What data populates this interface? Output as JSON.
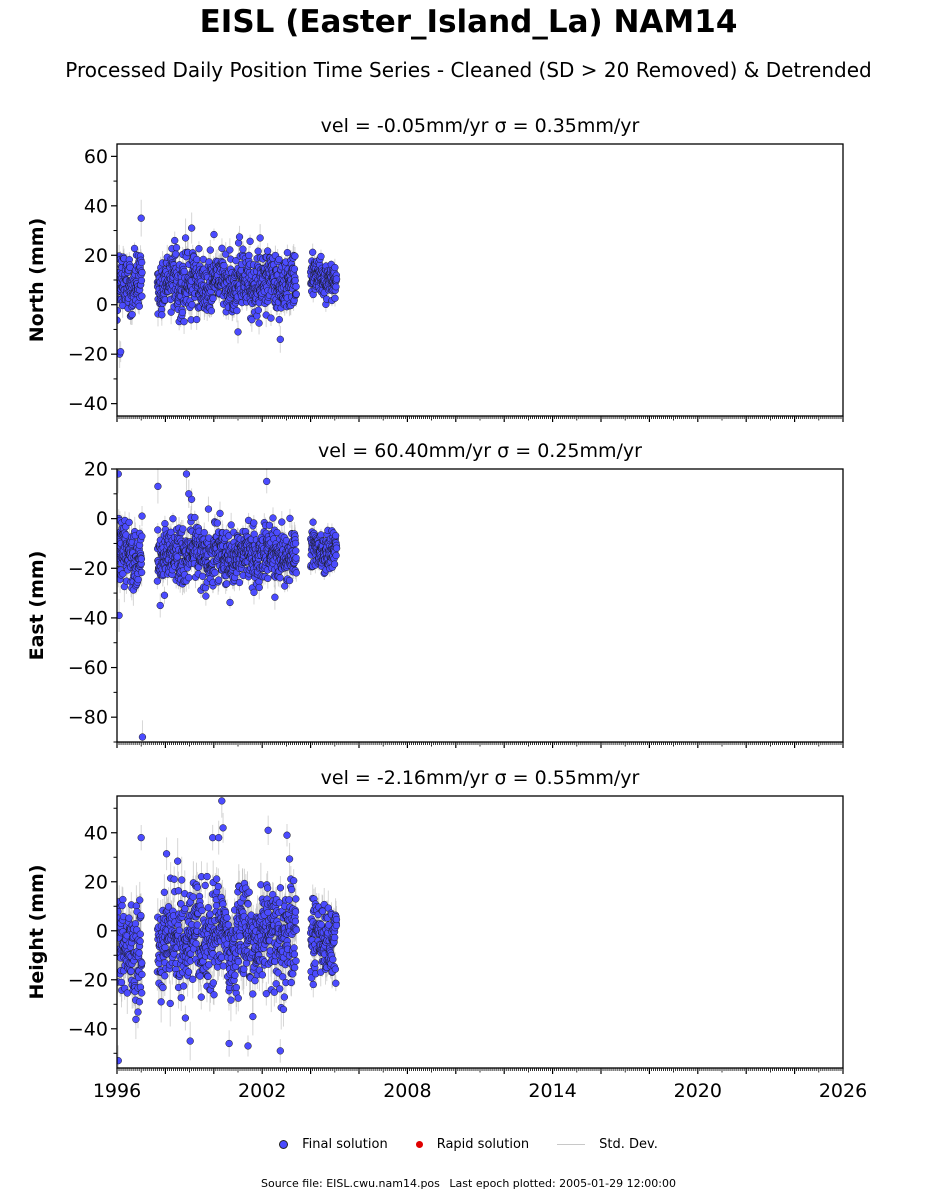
{
  "header": {
    "title": "EISL (Easter_Island_La) NAM14",
    "subtitle": "Processed Daily Position Time Series - Cleaned (SD > 20 Removed) & Detrended"
  },
  "legend": {
    "final_label": "Final solution",
    "rapid_label": "Rapid solution",
    "std_label": "Std. Dev."
  },
  "footer": {
    "source": "Source file: EISL.cwu.nam14.pos",
    "last_epoch": "Last epoch plotted: 2005-01-29 12:00:00"
  },
  "colors": {
    "final": "#4b4bff",
    "rapid": "#e00000",
    "std": "#b4b4b4"
  },
  "chart_data": [
    {
      "type": "scatter",
      "title": "vel = -0.05mm/yr   σ = 0.35mm/yr",
      "ylabel": "North (mm)",
      "xlim": [
        "1996-01-01",
        "2026-01-01"
      ],
      "ylim": [
        -45,
        65
      ],
      "yticks": [
        -40,
        -20,
        0,
        20,
        40,
        60
      ],
      "segments": [
        {
          "start": "1996-01-01",
          "end": "1997-01-15",
          "mean": 9,
          "sd": 6.5
        },
        {
          "start": "1997-09-01",
          "end": "2003-06-01",
          "mean": 9,
          "sd": 6.5
        },
        {
          "start": "2004-01-01",
          "end": "2005-01-29",
          "mean": 11,
          "sd": 4.5
        }
      ],
      "outliers": [
        {
          "x": "1996-02-10",
          "y": -20
        },
        {
          "x": "1996-02-25",
          "y": -19
        },
        {
          "x": "1997-01-01",
          "y": 35
        },
        {
          "x": "1999-02-01",
          "y": 31
        },
        {
          "x": "1998-11-01",
          "y": 27
        },
        {
          "x": "2001-12-01",
          "y": 27
        },
        {
          "x": "2002-10-01",
          "y": -14
        },
        {
          "x": "2001-01-01",
          "y": -11
        }
      ]
    },
    {
      "type": "scatter",
      "title": "vel = 60.40mm/yr   σ = 0.25mm/yr",
      "ylabel": "East (mm)",
      "xlim": [
        "1996-01-01",
        "2026-01-01"
      ],
      "ylim": [
        -90,
        20
      ],
      "yticks": [
        -80,
        -60,
        -40,
        -20,
        0,
        20
      ],
      "segments": [
        {
          "start": "1996-01-01",
          "end": "1997-01-15",
          "mean": -14,
          "sd": 8
        },
        {
          "start": "1997-09-01",
          "end": "2003-06-01",
          "mean": -15,
          "sd": 6.5
        },
        {
          "start": "2004-01-01",
          "end": "2005-01-29",
          "mean": -13,
          "sd": 4.5
        }
      ],
      "outliers": [
        {
          "x": "1996-01-20",
          "y": 18
        },
        {
          "x": "1996-02-01",
          "y": -39
        },
        {
          "x": "1997-01-20",
          "y": -88
        },
        {
          "x": "1997-09-10",
          "y": 13
        },
        {
          "x": "1998-11-15",
          "y": 18
        },
        {
          "x": "1998-12-20",
          "y": 10
        },
        {
          "x": "2002-03-10",
          "y": 15
        },
        {
          "x": "1997-10-15",
          "y": -35
        }
      ]
    },
    {
      "type": "scatter",
      "title": "vel = -2.16mm/yr   σ = 0.55mm/yr",
      "ylabel": "Height (mm)",
      "xlabel": "",
      "xlim": [
        "1996-01-01",
        "2026-01-01"
      ],
      "ylim": [
        -56,
        55
      ],
      "yticks": [
        -40,
        -20,
        0,
        20,
        40
      ],
      "xticks": [
        "1996",
        "2002",
        "2008",
        "2014",
        "2020",
        "2026"
      ],
      "segments": [
        {
          "start": "1996-01-01",
          "end": "1997-01-15",
          "mean": -8,
          "sd": 13
        },
        {
          "start": "1997-09-01",
          "end": "2003-06-01",
          "mean": -3,
          "sd": 12
        },
        {
          "start": "2004-01-01",
          "end": "2005-01-29",
          "mean": -4,
          "sd": 9
        }
      ],
      "outliers": [
        {
          "x": "1996-01-20",
          "y": -53
        },
        {
          "x": "1997-01-01",
          "y": 38
        },
        {
          "x": "2000-05-01",
          "y": 53
        },
        {
          "x": "2000-05-20",
          "y": 42
        },
        {
          "x": "1999-12-15",
          "y": 38
        },
        {
          "x": "2000-03-15",
          "y": 38
        },
        {
          "x": "2002-04-01",
          "y": 41
        },
        {
          "x": "2003-01-10",
          "y": 39
        },
        {
          "x": "1999-01-10",
          "y": -45
        },
        {
          "x": "2000-08-20",
          "y": -46
        },
        {
          "x": "2001-06-01",
          "y": -47
        },
        {
          "x": "2002-10-01",
          "y": -49
        }
      ]
    }
  ]
}
